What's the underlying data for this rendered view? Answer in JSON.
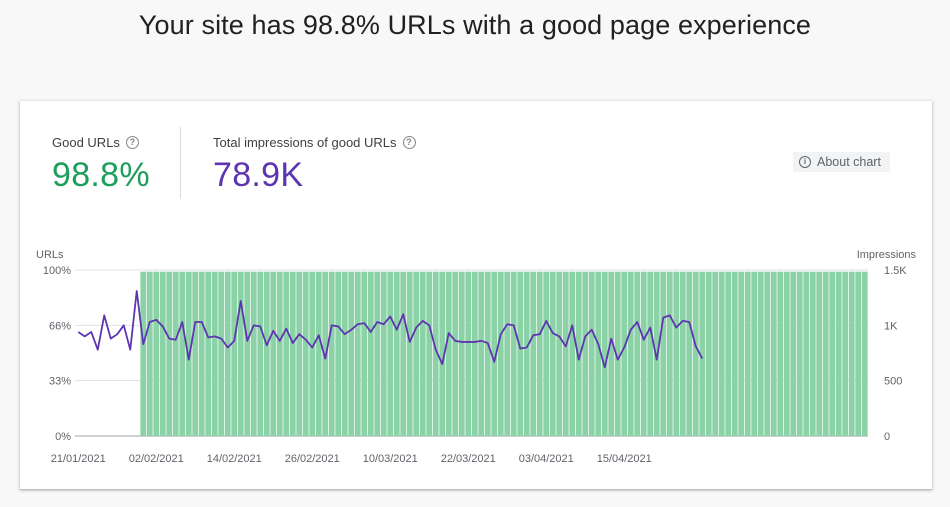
{
  "headline": "Your site has 98.8% URLs with a good page experience",
  "metrics": {
    "good_urls": {
      "label": "Good URLs",
      "value": "98.8%",
      "color": "#1e9e5b"
    },
    "impressions": {
      "label": "Total impressions of good URLs",
      "value": "78.9K",
      "color": "#5e35b1"
    }
  },
  "about_chart": {
    "label": "About chart",
    "icon": "info-icon"
  },
  "chart_data": {
    "type": "bar",
    "left_axis": {
      "title": "URLs",
      "ticks": [
        "100%",
        "66%",
        "33%",
        "0%"
      ],
      "ylim": [
        0,
        100
      ]
    },
    "right_axis": {
      "title": "Impressions",
      "ticks": [
        "1.5K",
        "1K",
        "500",
        "0"
      ],
      "ylim": [
        0,
        1500
      ]
    },
    "x_ticks": [
      "21/01/2021",
      "02/02/2021",
      "14/02/2021",
      "26/02/2021",
      "10/03/2021",
      "22/03/2021",
      "03/04/2021",
      "15/04/2021"
    ],
    "start_date": "2021-01-21",
    "grid": true,
    "bar_color": "#8bd3a7",
    "line_color": "#5e35b1",
    "series": [
      {
        "name": "Good URLs",
        "values": [
          0,
          0,
          0,
          0,
          0,
          0,
          0,
          0,
          0,
          0,
          99,
          99,
          99,
          99,
          99,
          99,
          99,
          99,
          99,
          99,
          99,
          99,
          99,
          99,
          99,
          99,
          99,
          99,
          99,
          99,
          99,
          99,
          99,
          99,
          99,
          99,
          99,
          99,
          99,
          99,
          99,
          99,
          99,
          99,
          99,
          99,
          99,
          99,
          99,
          99,
          99,
          99,
          99,
          99,
          99,
          99,
          99,
          99,
          99,
          99,
          99,
          99,
          99,
          99,
          99,
          99,
          99,
          99,
          99,
          99,
          99,
          99,
          99,
          99,
          99,
          99,
          99,
          99,
          99,
          99,
          99,
          99,
          99,
          99,
          99,
          99,
          99,
          99,
          99,
          99,
          99,
          99,
          99,
          99,
          99,
          99,
          99,
          99,
          99,
          99,
          99,
          99,
          99,
          99,
          99,
          99,
          99,
          99,
          99,
          99,
          99,
          99,
          99,
          99,
          99,
          99,
          99,
          99,
          99,
          99,
          99,
          99
        ]
      },
      {
        "name": "Impressions",
        "values": [
          940,
          900,
          940,
          780,
          1090,
          880,
          920,
          1000,
          780,
          1310,
          830,
          1030,
          1050,
          990,
          880,
          870,
          1030,
          690,
          1030,
          1030,
          890,
          900,
          880,
          800,
          860,
          1220,
          860,
          1000,
          990,
          820,
          950,
          860,
          970,
          840,
          920,
          870,
          800,
          910,
          700,
          1000,
          990,
          920,
          960,
          1010,
          1020,
          940,
          1030,
          1010,
          1080,
          960,
          1100,
          850,
          980,
          1040,
          1000,
          780,
          650,
          930,
          860,
          850,
          850,
          850,
          860,
          840,
          670,
          920,
          1010,
          1000,
          790,
          800,
          910,
          920,
          1040,
          930,
          900,
          810,
          1000,
          690,
          900,
          960,
          830,
          620,
          880,
          690,
          800,
          960,
          1030,
          870,
          980,
          690,
          1070,
          1090,
          980,
          1040,
          1030,
          810,
          700
        ]
      }
    ]
  }
}
